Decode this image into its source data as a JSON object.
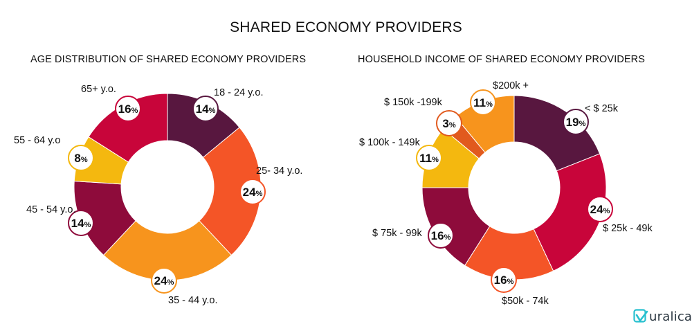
{
  "title": "SHARED ECONOMY PROVIDERS",
  "logo": {
    "text": "uralica",
    "name": "Muralica"
  },
  "chart_data": [
    {
      "type": "pie",
      "style": "donut",
      "title": "AGE DISTRIBUTION OF SHARED ECONOMY PROVIDERS",
      "slices": [
        {
          "label": "18 - 24 y.o.",
          "value": 14,
          "color": "#58173f"
        },
        {
          "label": "25- 34 y.o.",
          "value": 24,
          "color": "#f45527"
        },
        {
          "label": "35 - 44 y.o.",
          "value": 24,
          "color": "#f7941d"
        },
        {
          "label": "45 - 54 y.o.",
          "value": 14,
          "color": "#8e0b3b"
        },
        {
          "label": "55 - 64 y.o",
          "value": 8,
          "color": "#f4b80f"
        },
        {
          "label": "65+ y.o.",
          "value": 16,
          "color": "#c8053a"
        }
      ]
    },
    {
      "type": "pie",
      "style": "donut",
      "title": "HOUSEHOLD INCOME OF SHARED ECONOMY PROVIDERS",
      "slices": [
        {
          "label": "< $ 25k",
          "value": 19,
          "color": "#58173f"
        },
        {
          "label": "$ 25k - 49k",
          "value": 24,
          "color": "#c8053a"
        },
        {
          "label": "$50k - 74k",
          "value": 16,
          "color": "#f45527"
        },
        {
          "label": "$ 75k - 99k",
          "value": 16,
          "color": "#8e0b3b"
        },
        {
          "label": "$ 100k - 149k",
          "value": 11,
          "color": "#f4b80f"
        },
        {
          "label": "$ 150k -199k",
          "value": 3,
          "color": "#e15a1e"
        },
        {
          "label": "$200k +",
          "value": 11,
          "color": "#f7941d"
        }
      ]
    }
  ]
}
